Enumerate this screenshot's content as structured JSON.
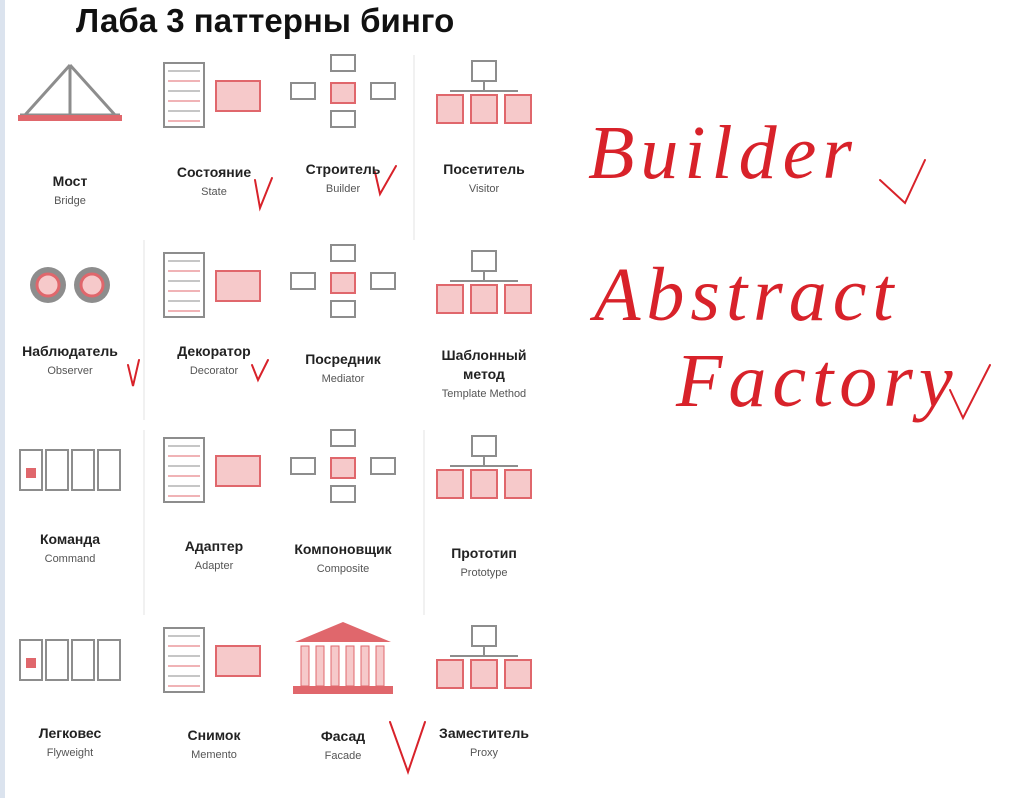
{
  "title": "Лаба 3 паттерны бинго",
  "patterns": [
    {
      "name": "Мост",
      "en": "Bridge"
    },
    {
      "name": "Состояние",
      "en": "State"
    },
    {
      "name": "Строитель",
      "en": "Builder"
    },
    {
      "name": "Посетитель",
      "en": "Visitor"
    },
    {
      "name": "Наблюдатель",
      "en": "Observer"
    },
    {
      "name": "Декоратор",
      "en": "Decorator"
    },
    {
      "name": "Посредник",
      "en": "Mediator"
    },
    {
      "name": "Шаблонный метод",
      "en": "Template Method"
    },
    {
      "name": "Команда",
      "en": "Command"
    },
    {
      "name": "Адаптер",
      "en": "Adapter"
    },
    {
      "name": "Компоновщик",
      "en": "Composite"
    },
    {
      "name": "Прототип",
      "en": "Prototype"
    },
    {
      "name": "Легковес",
      "en": "Flyweight"
    },
    {
      "name": "Снимок",
      "en": "Memento"
    },
    {
      "name": "Фасад",
      "en": "Facade"
    },
    {
      "name": "Заместитель",
      "en": "Proxy"
    }
  ],
  "handwriting": [
    "Builder",
    "Abstract",
    "Factory"
  ]
}
